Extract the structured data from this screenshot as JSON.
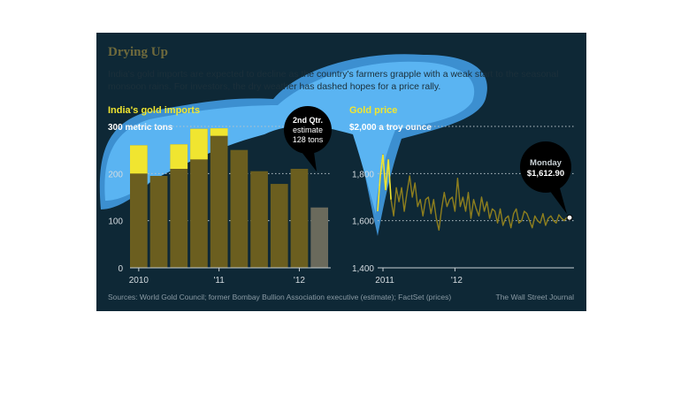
{
  "header": {
    "title": "Drying Up",
    "subtitle": "India's gold imports are expected to decline as the country's farmers grapple with a weak start to the seasonal monsoon rains. For investors, the dry weather has dashed hopes for a price rally."
  },
  "footer": {
    "source": "Sources: World Gold Council; former Bombay Bullion Association executive (estimate); FactSet (prices)",
    "credit": "The Wall Street Journal"
  },
  "colors": {
    "background": "#0e2836",
    "bar": "#6b5e1f",
    "bar_highlight": "#f0e530",
    "estimate_bar": "#6a6a5c",
    "line": "#8e7f1e",
    "accent_text": "#f0e530",
    "highlight_blob": "#4aa6e8"
  },
  "chart_data": [
    {
      "type": "bar",
      "title": "India's gold imports",
      "unit_label": "300 metric tons",
      "quarters": [
        "2010 Q1",
        "2010 Q2",
        "2010 Q3",
        "2010 Q4",
        "2011 Q1",
        "2011 Q2",
        "2011 Q3",
        "2011 Q4",
        "2012 Q1",
        "2012 Q2"
      ],
      "tick_labels": [
        "2010",
        "'11",
        "'12"
      ],
      "values": [
        260,
        195,
        262,
        295,
        296,
        250,
        205,
        178,
        210,
        128
      ],
      "estimate_index": 9,
      "ylim": [
        0,
        300
      ],
      "yticks": [
        "0",
        "100",
        "200"
      ],
      "annotation": {
        "lines": [
          "2nd Qtr.",
          "estimate",
          "128 tons"
        ]
      }
    },
    {
      "type": "line",
      "title": "Gold price",
      "unit_label": "$2,000 a troy ounce",
      "tick_labels": [
        "2011",
        "'12"
      ],
      "ylim": [
        1400,
        2000
      ],
      "yticks": [
        "1,400",
        "1,600",
        "1,800"
      ],
      "series": [
        {
          "x": [
            0,
            3,
            6,
            9,
            12,
            15,
            18,
            21,
            24,
            27,
            30,
            33,
            36,
            39,
            42,
            45,
            48,
            51,
            54,
            57,
            60,
            63,
            66,
            69,
            72,
            75,
            78,
            81,
            84,
            87,
            90,
            93,
            96,
            99,
            102,
            105,
            108,
            111,
            114,
            117,
            120,
            123,
            126,
            129,
            132,
            135,
            138,
            141,
            144,
            147,
            150,
            153,
            156,
            159,
            162,
            165,
            168,
            171,
            174,
            177,
            180,
            183,
            186,
            189,
            192,
            195,
            198,
            201,
            204,
            207,
            210,
            213,
            216
          ],
          "y": [
            1640,
            1790,
            1880,
            1730,
            1860,
            1690,
            1620,
            1740,
            1680,
            1740,
            1640,
            1720,
            1790,
            1700,
            1760,
            1660,
            1690,
            1620,
            1690,
            1700,
            1630,
            1690,
            1610,
            1560,
            1650,
            1720,
            1660,
            1690,
            1700,
            1640,
            1780,
            1660,
            1700,
            1640,
            1720,
            1610,
            1690,
            1650,
            1620,
            1700,
            1640,
            1680,
            1610,
            1650,
            1640,
            1590,
            1650,
            1580,
            1610,
            1620,
            1570,
            1630,
            1650,
            1590,
            1600,
            1640,
            1630,
            1600,
            1570,
            1620,
            1600,
            1590,
            1630,
            1580,
            1610,
            1620,
            1600,
            1590,
            1625,
            1610,
            1600,
            1615,
            1612.9
          ]
        }
      ],
      "annotation": {
        "lines": [
          "Monday",
          "$1,612.90"
        ]
      }
    }
  ]
}
